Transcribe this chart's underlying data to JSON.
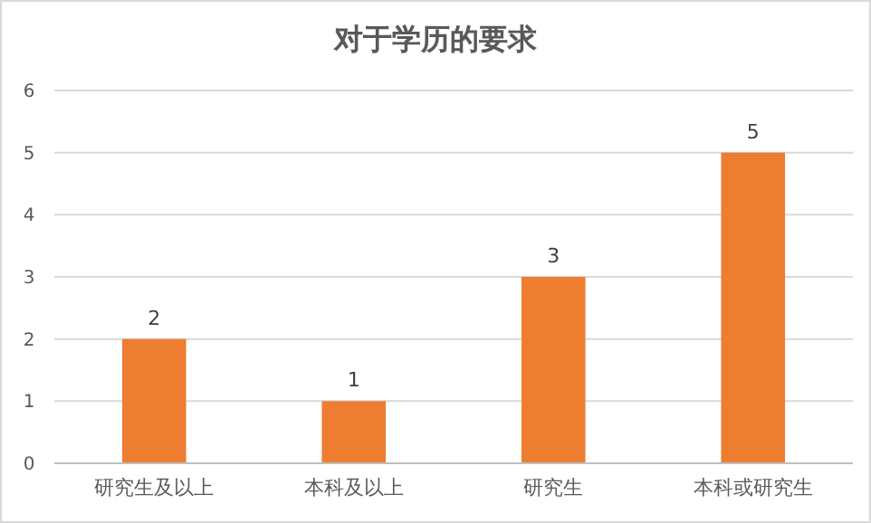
{
  "chart_data": {
    "type": "bar",
    "title": "对于学历的要求",
    "categories": [
      "研究生及以上",
      "本科及以上",
      "研究生",
      "本科或研究生"
    ],
    "values": [
      2,
      1,
      3,
      5
    ],
    "color": "#ed7d31",
    "ylim": [
      0,
      6
    ],
    "yticks": [
      0,
      1,
      2,
      3,
      4,
      5,
      6
    ],
    "grid": "y",
    "data_labels": true
  }
}
